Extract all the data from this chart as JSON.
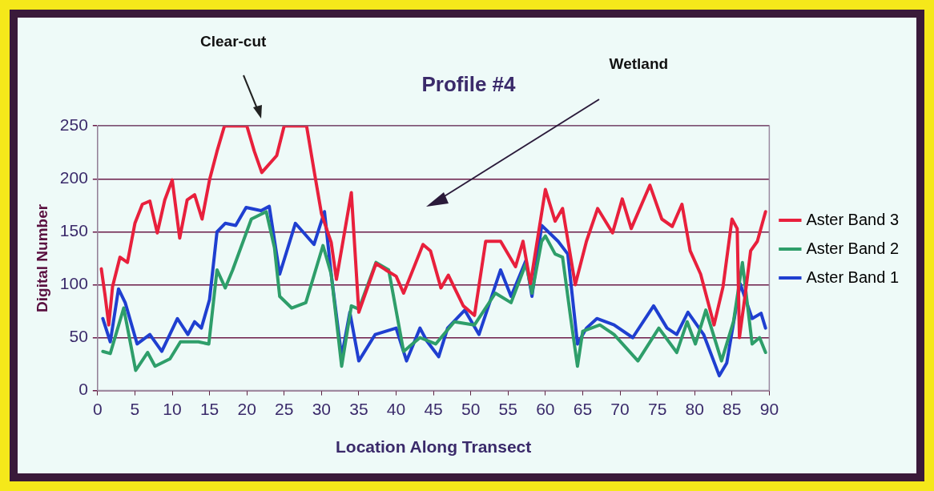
{
  "chart_data": {
    "type": "line",
    "title": "Profile #4",
    "xlabel": "Location Along Transect",
    "ylabel": "Digital Number",
    "annotations": [
      "Clear-cut",
      "Wetland"
    ],
    "xlim": [
      0,
      90
    ],
    "xticks": [
      0,
      5,
      10,
      15,
      20,
      25,
      30,
      35,
      40,
      45,
      50,
      55,
      60,
      65,
      70,
      75,
      80,
      85,
      90
    ],
    "ylim": [
      0,
      250
    ],
    "yticks": [
      0,
      50,
      100,
      150,
      200,
      250
    ],
    "grid": "y",
    "legend": "right",
    "marker": "none",
    "line_style": "solid",
    "series": [
      {
        "name": "Aster Band 3",
        "color": "#e8203c",
        "x": [
          0.5,
          1,
          1.5,
          2,
          3,
          4,
          5,
          6,
          7,
          8,
          9,
          10,
          11,
          12,
          13,
          14,
          15,
          16,
          17,
          20,
          21,
          22,
          24,
          25,
          28,
          29,
          30,
          31.3,
          32,
          34,
          35,
          37.3,
          38.6,
          40,
          41,
          43.6,
          44.6,
          46,
          47,
          49,
          50.5,
          52,
          54,
          56,
          57,
          58,
          60,
          61.3,
          62.3,
          64,
          65.5,
          67,
          69,
          70.3,
          71.5,
          74,
          75.6,
          77,
          78.3,
          79.4,
          80.8,
          82.6,
          83.8,
          85,
          85.7,
          86,
          86.8,
          87.5,
          88.4,
          89.5
        ],
        "values": [
          115,
          90,
          62,
          98,
          126,
          121,
          158,
          176,
          179,
          149,
          180,
          199,
          144,
          180,
          185,
          162,
          199,
          226,
          250,
          250,
          226,
          206,
          222,
          250,
          250,
          208,
          167,
          140,
          105,
          187,
          74,
          120,
          114,
          108,
          92,
          138,
          132,
          97,
          109,
          80,
          71,
          141,
          141,
          117,
          141,
          101,
          190,
          160,
          172,
          100,
          141,
          172,
          149,
          181,
          153,
          194,
          162,
          155,
          176,
          132,
          110,
          62,
          98,
          162,
          153,
          50,
          92,
          132,
          141,
          169
        ]
      },
      {
        "name": "Aster Band 2",
        "color": "#2e9e6a",
        "x": [
          0.7,
          1.7,
          3.5,
          5.1,
          6.7,
          7.7,
          9.7,
          11.1,
          13.5,
          14.9,
          16,
          17.1,
          18.1,
          20.6,
          22.6,
          23.7,
          24.4,
          26,
          27.9,
          30.2,
          31.3,
          32.7,
          34,
          35,
          37.3,
          39,
          41,
          43.2,
          45.3,
          47.8,
          50.5,
          53.3,
          55.4,
          57.4,
          58.2,
          59.5,
          60,
          61.3,
          62.3,
          63.4,
          64.3,
          65,
          67.3,
          69.2,
          72.4,
          75.2,
          77.6,
          79,
          80.1,
          81.5,
          83.6,
          85.2,
          86.4,
          87.7,
          88.7,
          89.5
        ],
        "values": [
          37,
          35,
          78,
          19,
          36,
          23,
          30,
          46,
          46,
          44,
          114,
          97,
          114,
          162,
          169,
          135,
          89,
          78,
          83,
          137,
          110,
          23,
          80,
          77,
          121,
          114,
          37,
          50,
          44,
          65,
          62,
          92,
          83,
          120,
          92,
          141,
          146,
          129,
          126,
          68,
          23,
          56,
          62,
          53,
          28,
          59,
          36,
          65,
          44,
          76,
          28,
          65,
          121,
          44,
          50,
          36
        ]
      },
      {
        "name": "Aster Band 1",
        "color": "#1f3fd0",
        "x": [
          0.7,
          1.7,
          2.8,
          3.7,
          5.3,
          7,
          8.6,
          10.7,
          12.1,
          13,
          13.9,
          15,
          16,
          17.1,
          18.5,
          19.9,
          21.9,
          23,
          24.4,
          26.5,
          29,
          30.4,
          31.3,
          32.7,
          33.8,
          35,
          37.2,
          40,
          41.4,
          43.2,
          44.1,
          45.7,
          46.9,
          49.2,
          51.1,
          54,
          55.4,
          57.4,
          58.2,
          59.5,
          61.7,
          63,
          64.3,
          65.5,
          66.9,
          69.2,
          71.7,
          74.5,
          76.3,
          77.6,
          79.1,
          81.2,
          83.3,
          84.3,
          86.1,
          87.7,
          88.9,
          89.5
        ],
        "values": [
          68,
          46,
          96,
          83,
          44,
          53,
          37,
          68,
          53,
          65,
          59,
          86,
          150,
          158,
          156,
          173,
          170,
          174,
          110,
          158,
          138,
          169,
          110,
          32,
          74,
          28,
          53,
          59,
          28,
          59,
          47,
          32,
          59,
          76,
          53,
          114,
          89,
          123,
          89,
          156,
          141,
          129,
          44,
          59,
          68,
          62,
          50,
          80,
          59,
          53,
          74,
          53,
          14,
          26,
          101,
          68,
          73,
          59
        ]
      }
    ]
  }
}
